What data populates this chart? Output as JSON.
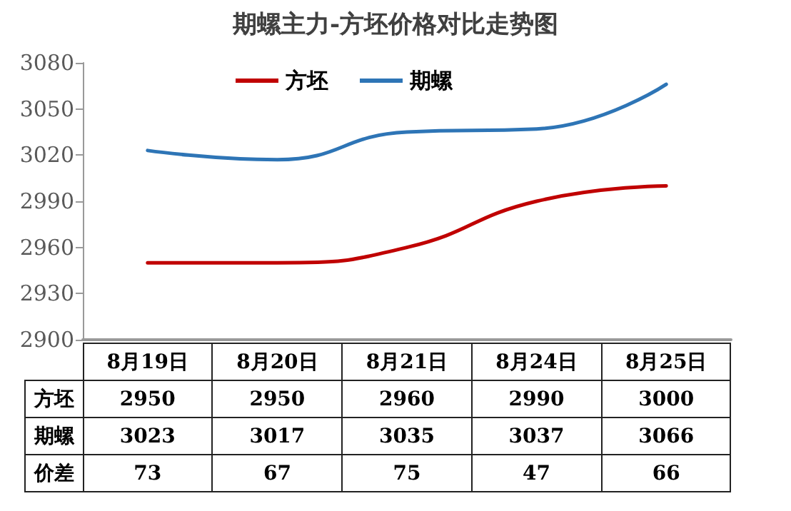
{
  "chart_data": {
    "type": "line",
    "title": "期螺主力-方坯价格对比走势图",
    "categories": [
      "8月19日",
      "8月20日",
      "8月21日",
      "8月24日",
      "8月25日"
    ],
    "series": [
      {
        "name": "方坯",
        "color": "#c00000",
        "values": [
          2950,
          2950,
          2960,
          2990,
          3000
        ]
      },
      {
        "name": "期螺",
        "color": "#2e75b6",
        "values": [
          3023,
          3017,
          3035,
          3037,
          3066
        ]
      }
    ],
    "annotations": [
      "价差",
      "73",
      "67",
      "75",
      "47",
      "66"
    ],
    "ylim": [
      2900,
      3080
    ],
    "yticks": [
      2900,
      2930,
      2960,
      2990,
      3020,
      3050,
      3080
    ],
    "grid": false,
    "legend": "top",
    "marker": "none",
    "line_style": "solid",
    "data_labels": true
  }
}
